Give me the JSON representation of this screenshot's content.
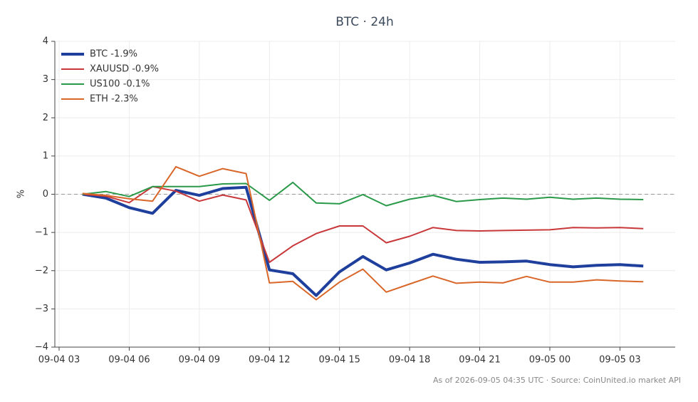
{
  "chart_data": {
    "type": "line",
    "title": "BTC · 24h",
    "ylabel": "%",
    "footnote": "As of 2026-09-05 04:35 UTC · Source: CoinUnited.io market API",
    "x": [
      "09-04 04",
      "09-04 05",
      "09-04 06",
      "09-04 07",
      "09-04 08",
      "09-04 09",
      "09-04 10",
      "09-04 11",
      "09-04 12",
      "09-04 13",
      "09-04 14",
      "09-04 15",
      "09-04 16",
      "09-04 17",
      "09-04 18",
      "09-04 19",
      "09-04 20",
      "09-04 21",
      "09-04 22",
      "09-04 23",
      "09-05 00",
      "09-05 01",
      "09-05 02",
      "09-05 03",
      "09-05 04"
    ],
    "xlim": [
      "09-04 03",
      "09-05 05"
    ],
    "xticks": [
      "09-04 03",
      "09-04 06",
      "09-04 09",
      "09-04 12",
      "09-04 15",
      "09-04 18",
      "09-04 21",
      "09-05 00",
      "09-05 03"
    ],
    "ylim": [
      -4,
      4
    ],
    "yticks": [
      {
        "value": -4,
        "label": "−4"
      },
      {
        "value": -3,
        "label": "−3"
      },
      {
        "value": -2,
        "label": "−2"
      },
      {
        "value": -1,
        "label": "−1"
      },
      0,
      1,
      2,
      3,
      4
    ],
    "grid": true,
    "zero_line": true,
    "legend": "upper left",
    "series": [
      {
        "name": "BTC -1.9%",
        "color": "#1f3f9c",
        "line_width": 4,
        "values": [
          0,
          -0.1,
          -0.35,
          -0.5,
          0.1,
          -0.03,
          0.15,
          0.18,
          -1.98,
          -2.08,
          -2.65,
          -2.03,
          -1.63,
          -1.98,
          -1.8,
          -1.57,
          -1.7,
          -1.78,
          -1.77,
          -1.75,
          -1.84,
          -1.9,
          -1.86,
          -1.84,
          -1.88
        ]
      },
      {
        "name": "XAUUSD -0.9%",
        "color": "#c8383a",
        "line_width": 2,
        "values": [
          0,
          -0.05,
          -0.22,
          0.2,
          0.08,
          -0.18,
          -0.02,
          -0.15,
          -1.78,
          -1.35,
          -1.03,
          -0.83,
          -0.83,
          -1.27,
          -1.1,
          -0.87,
          -0.95,
          -0.96,
          -0.95,
          -0.94,
          -0.93,
          -0.87,
          -0.88,
          -0.87,
          -0.9
        ]
      },
      {
        "name": "US100 -0.1%",
        "color": "#2a9a4a",
        "line_width": 2,
        "values": [
          0,
          0.07,
          -0.06,
          0.2,
          0.2,
          0.2,
          0.27,
          0.28,
          -0.16,
          0.31,
          -0.23,
          -0.25,
          -0.01,
          -0.3,
          -0.13,
          -0.03,
          -0.19,
          -0.14,
          -0.1,
          -0.13,
          -0.08,
          -0.13,
          -0.1,
          -0.13,
          -0.14
        ]
      },
      {
        "name": "ETH -2.3%",
        "color": "#d9672a",
        "line_width": 2,
        "values": [
          0.02,
          -0.03,
          -0.12,
          -0.18,
          0.72,
          0.47,
          0.67,
          0.54,
          -2.32,
          -2.28,
          -2.76,
          -2.3,
          -1.96,
          -2.56,
          -2.35,
          -2.14,
          -2.33,
          -2.3,
          -2.32,
          -2.15,
          -2.3,
          -2.3,
          -2.24,
          -2.27,
          -2.29
        ]
      }
    ]
  }
}
